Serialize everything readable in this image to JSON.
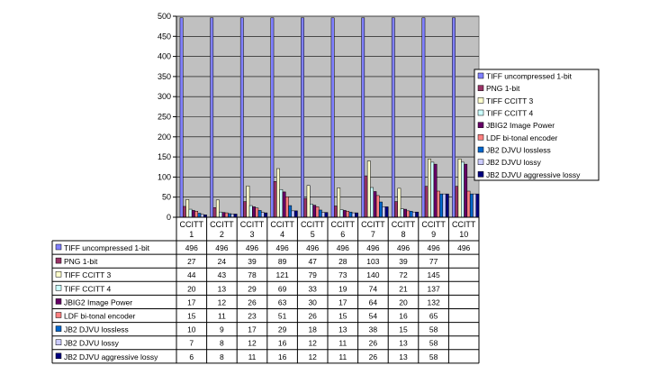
{
  "chart_data": {
    "type": "bar",
    "categories": [
      [
        "CCITT",
        "1"
      ],
      [
        "CCITT",
        "2"
      ],
      [
        "CCITT",
        "3"
      ],
      [
        "CCITT",
        "4"
      ],
      [
        "CCITT",
        "5"
      ],
      [
        "CCITT",
        "6"
      ],
      [
        "CCITT",
        "7"
      ],
      [
        "CCITT",
        "8"
      ],
      [
        "CCITT",
        "9"
      ],
      [
        "CCITT",
        "10"
      ]
    ],
    "ylim": [
      0,
      500
    ],
    "yticks": [
      "0",
      "50",
      "100",
      "150",
      "200",
      "250",
      "300",
      "350",
      "400",
      "450",
      "500"
    ],
    "grid": "horizontal",
    "legend_position": "right",
    "data_table": true,
    "series": [
      {
        "name": "TIFF uncompressed 1-bit",
        "color": "#8080ff",
        "values": [
          496,
          496,
          496,
          496,
          496,
          496,
          496,
          496,
          496,
          496
        ]
      },
      {
        "name": "PNG 1-bit",
        "color": "#993366",
        "values": [
          27,
          24,
          39,
          89,
          47,
          28,
          103,
          39,
          77,
          77
        ]
      },
      {
        "name": "TIFF CCITT 3",
        "color": "#ffffcc",
        "values": [
          44,
          43,
          78,
          121,
          79,
          73,
          140,
          72,
          145,
          145
        ]
      },
      {
        "name": "TIFF CCITT 4",
        "color": "#ccffff",
        "values": [
          20,
          13,
          29,
          69,
          33,
          19,
          74,
          21,
          137,
          137
        ]
      },
      {
        "name": "JBIG2 Image Power",
        "color": "#660066",
        "values": [
          17,
          12,
          26,
          63,
          30,
          17,
          64,
          20,
          132,
          132
        ]
      },
      {
        "name": "LDF bi-tonal encoder",
        "color": "#ff8080",
        "values": [
          15,
          11,
          23,
          51,
          26,
          15,
          54,
          16,
          65,
          65
        ]
      },
      {
        "name": "JB2 DJVU lossless",
        "color": "#0066cc",
        "values": [
          10,
          9,
          17,
          29,
          18,
          13,
          38,
          15,
          58,
          58
        ]
      },
      {
        "name": "JB2 DJVU lossy",
        "color": "#ccccff",
        "values": [
          7,
          8,
          12,
          16,
          12,
          11,
          26,
          13,
          58,
          58
        ]
      },
      {
        "name": "JB2 DJVU aggressive lossy",
        "color": "#000080",
        "values": [
          6,
          8,
          11,
          16,
          12,
          11,
          26,
          13,
          58,
          58
        ]
      }
    ],
    "table_values": [
      [
        "496",
        "496",
        "496",
        "496",
        "496",
        "496",
        "496",
        "496",
        "496",
        "496"
      ],
      [
        "27",
        "24",
        "39",
        "89",
        "47",
        "28",
        "103",
        "39",
        "77",
        ""
      ],
      [
        "44",
        "43",
        "78",
        "121",
        "79",
        "73",
        "140",
        "72",
        "145",
        ""
      ],
      [
        "20",
        "13",
        "29",
        "69",
        "33",
        "19",
        "74",
        "21",
        "137",
        ""
      ],
      [
        "17",
        "12",
        "26",
        "63",
        "30",
        "17",
        "64",
        "20",
        "132",
        ""
      ],
      [
        "15",
        "11",
        "23",
        "51",
        "26",
        "15",
        "54",
        "16",
        "65",
        ""
      ],
      [
        "10",
        "9",
        "17",
        "29",
        "18",
        "13",
        "38",
        "15",
        "58",
        ""
      ],
      [
        "7",
        "8",
        "12",
        "16",
        "12",
        "11",
        "26",
        "13",
        "58",
        ""
      ],
      [
        "6",
        "8",
        "11",
        "16",
        "12",
        "11",
        "26",
        "13",
        "58",
        ""
      ]
    ]
  }
}
